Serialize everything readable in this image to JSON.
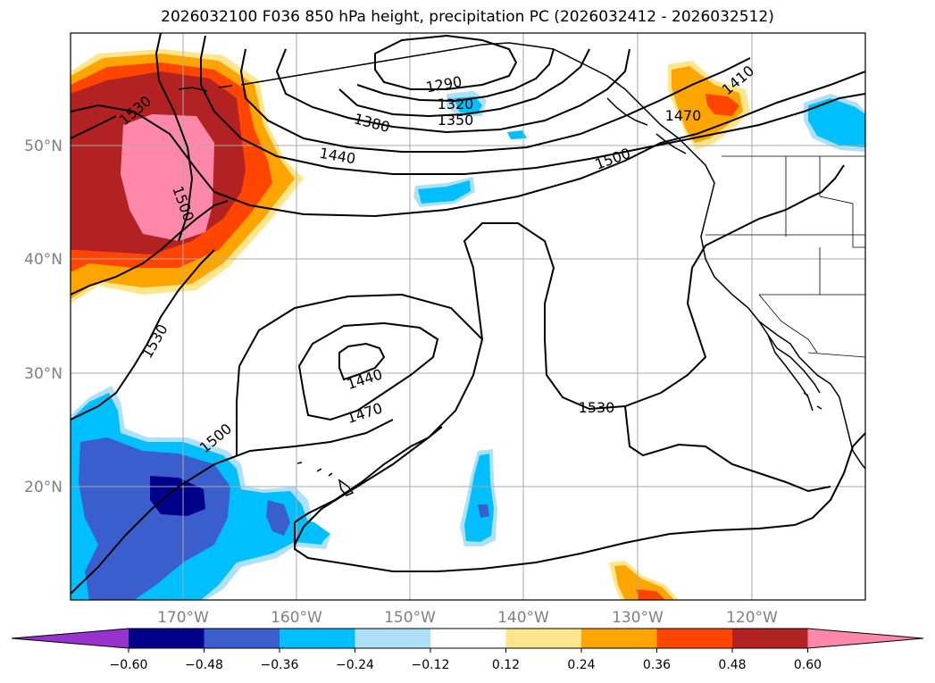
{
  "title": "2026032100 F036 850 hPa height, precipitation PC (2026032412 - 2026032512)",
  "lat_labels": [
    "50°N",
    "40°N",
    "30°N",
    "20°N"
  ],
  "lon_labels": [
    "170°W",
    "160°W",
    "150°W",
    "140°W",
    "130°W",
    "120°W"
  ],
  "contour_labels": [
    "1530",
    "1500",
    "1290",
    "1320",
    "1350",
    "1380",
    "1440",
    "1500",
    "1470",
    "1410",
    "1530",
    "1440",
    "1470",
    "1530",
    "1500"
  ],
  "colorbar": {
    "ticks": [
      "−0.60",
      "−0.48",
      "−0.36",
      "−0.24",
      "−0.12",
      "0.12",
      "0.24",
      "0.36",
      "0.48",
      "0.60"
    ],
    "colors": [
      "#9932cc",
      "#00008b",
      "#3a5fcd",
      "#00bfff",
      "#afe0fa",
      "#ffffff",
      "#ffe68c",
      "#ffa500",
      "#ff4500",
      "#b22222",
      "#ff88aa"
    ]
  },
  "colors": {
    "frame": "#000000",
    "grid": "#aaaaaa",
    "coast": "#000000",
    "contour": "#000000"
  }
}
